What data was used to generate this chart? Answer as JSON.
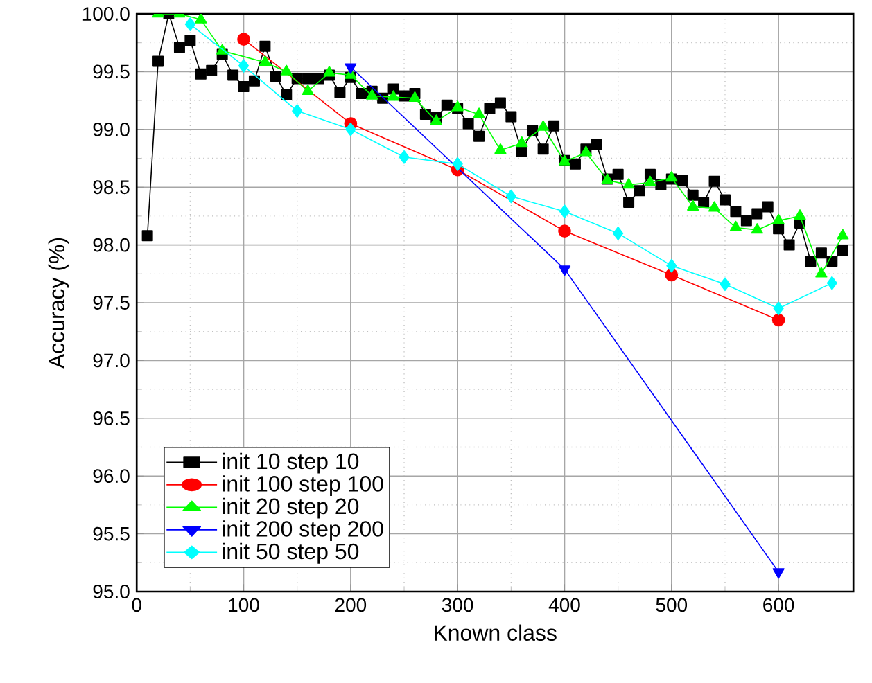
{
  "chart_data": {
    "type": "line",
    "xlabel": "Known class",
    "ylabel": "Accuracy (%)",
    "xlim": [
      0,
      670
    ],
    "ylim": [
      95,
      100
    ],
    "xticks": [
      0,
      100,
      200,
      300,
      400,
      500,
      600
    ],
    "yticks": [
      {
        "value": 95,
        "label": "95.0"
      },
      {
        "value": 95.5,
        "label": "95.5"
      },
      {
        "value": 96,
        "label": "96.0"
      },
      {
        "value": 96.5,
        "label": "96.5"
      },
      {
        "value": 97,
        "label": "97.0"
      },
      {
        "value": 97.5,
        "label": "97.5"
      },
      {
        "value": 98,
        "label": "98.0"
      },
      {
        "value": 98.5,
        "label": "98.5"
      },
      {
        "value": 99,
        "label": "99.0"
      },
      {
        "value": 99.5,
        "label": "99.5"
      },
      {
        "value": 100,
        "label": "100.0"
      }
    ],
    "grid": true,
    "legend": "bottom left",
    "series": [
      {
        "name": "init 10 step 10",
        "color": "#000000",
        "marker": "square",
        "x": [
          10,
          20,
          30,
          40,
          50,
          60,
          70,
          80,
          90,
          100,
          110,
          120,
          130,
          140,
          150,
          160,
          170,
          180,
          190,
          200,
          210,
          220,
          230,
          240,
          250,
          260,
          270,
          280,
          290,
          300,
          310,
          320,
          330,
          340,
          350,
          360,
          370,
          380,
          390,
          400,
          410,
          420,
          430,
          440,
          450,
          460,
          470,
          480,
          490,
          500,
          510,
          520,
          530,
          540,
          550,
          560,
          570,
          580,
          590,
          600,
          610,
          620,
          630,
          640,
          650,
          660
        ],
        "values": [
          98.08,
          99.59,
          100.0,
          99.71,
          99.77,
          99.48,
          99.51,
          99.65,
          99.47,
          99.37,
          99.42,
          99.72,
          99.46,
          99.3,
          99.44,
          99.44,
          99.44,
          99.47,
          99.32,
          99.45,
          99.31,
          99.33,
          99.27,
          99.35,
          99.29,
          99.31,
          99.13,
          99.1,
          99.21,
          99.18,
          99.05,
          98.94,
          99.18,
          99.23,
          99.11,
          98.81,
          98.99,
          98.83,
          99.03,
          98.73,
          98.7,
          98.83,
          98.87,
          98.57,
          98.61,
          98.37,
          98.47,
          98.61,
          98.52,
          98.57,
          98.56,
          98.43,
          98.37,
          98.55,
          98.39,
          98.29,
          98.21,
          98.27,
          98.33,
          98.14,
          98.0,
          98.19,
          97.86,
          97.93,
          97.86,
          97.95
        ]
      },
      {
        "name": "init 100 step 100",
        "color": "#ff0000",
        "marker": "circle",
        "x": [
          100,
          200,
          300,
          400,
          500,
          600
        ],
        "values": [
          99.78,
          99.05,
          98.65,
          98.12,
          97.74,
          97.35
        ]
      },
      {
        "name": "init 20 step 20",
        "color": "#00ff00",
        "marker": "triangle",
        "x": [
          20,
          40,
          60,
          80,
          100,
          120,
          140,
          160,
          180,
          200,
          220,
          240,
          260,
          280,
          300,
          320,
          340,
          360,
          380,
          400,
          420,
          440,
          460,
          480,
          500,
          520,
          540,
          560,
          580,
          600,
          620,
          640,
          660
        ],
        "values": [
          100.0,
          100.0,
          99.95,
          99.68,
          null,
          99.58,
          99.5,
          99.33,
          99.49,
          99.47,
          99.29,
          99.28,
          99.27,
          99.07,
          99.19,
          99.13,
          98.82,
          98.88,
          99.02,
          98.72,
          98.8,
          98.56,
          98.52,
          98.54,
          98.58,
          98.33,
          98.32,
          98.15,
          98.13,
          98.21,
          98.25,
          97.75,
          98.08
        ]
      },
      {
        "name": "init 200 step 200",
        "color": "#0000ff",
        "marker": "triangle down",
        "x": [
          200,
          400,
          600
        ],
        "values": [
          99.54,
          97.79,
          95.17
        ]
      },
      {
        "name": "init 50 step 50",
        "color": "#00ffff",
        "marker": "diamond",
        "x": [
          50,
          100,
          150,
          200,
          250,
          300,
          350,
          400,
          450,
          500,
          550,
          600,
          650
        ],
        "values": [
          99.91,
          99.55,
          99.16,
          99.0,
          98.76,
          98.7,
          98.42,
          98.29,
          98.1,
          97.82,
          97.66,
          97.45,
          97.67
        ]
      }
    ]
  }
}
